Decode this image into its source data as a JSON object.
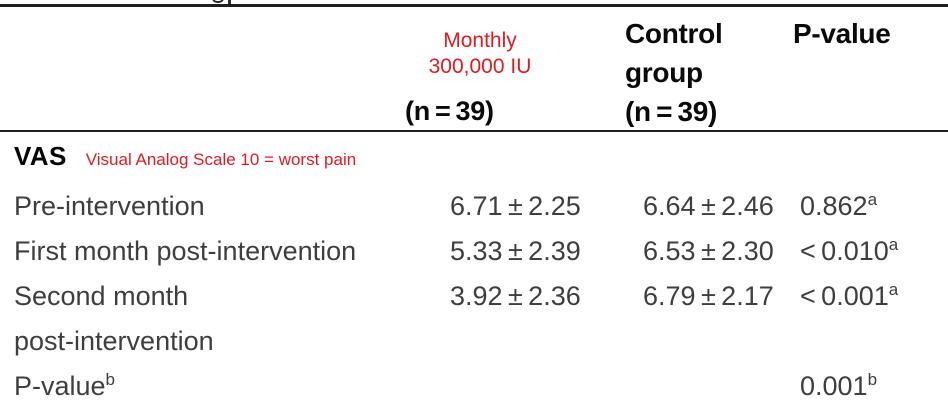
{
  "colors": {
    "annotation_red": "#dd1c22",
    "header_text": "#0a0a0a",
    "body_text": "#3e3e3e",
    "rule": "#1e1e1e"
  },
  "header": {
    "col_treatment": {
      "line1": "Monthly",
      "line2": "300,000 IU",
      "n": "(n = 39)"
    },
    "col_control": {
      "line1": "Control",
      "line2": "group",
      "n": "(n = 39)"
    },
    "col_pvalue": {
      "label": "P-value"
    }
  },
  "section": {
    "label": "VAS",
    "note": "Visual Analog Scale 10 = worst pain"
  },
  "rows": [
    {
      "label": "Pre-intervention",
      "label2": "",
      "label_sup": "",
      "treatment": "6.71 ± 2.25",
      "control": "6.64 ± 2.46",
      "p": "0.862",
      "p_sup": "a"
    },
    {
      "label": "First month post-intervention",
      "label2": "",
      "label_sup": "",
      "treatment": "5.33 ± 2.39",
      "control": "6.53 ± 2.30",
      "p": "< 0.010",
      "p_sup": "a"
    },
    {
      "label": "Second month",
      "label2": "post-intervention",
      "label_sup": "",
      "treatment": "3.92 ± 2.36",
      "control": "6.79 ± 2.17",
      "p": "< 0.001",
      "p_sup": "a"
    },
    {
      "label": "P-value",
      "label2": "",
      "label_sup": "b",
      "treatment": "",
      "control": "",
      "p": "0.001",
      "p_sup": "b"
    }
  ],
  "chart_data": {
    "type": "table",
    "title": "VAS (Visual Analog Scale, 10 = worst pain)",
    "columns": [
      "",
      "Monthly 300,000 IU (n = 39)",
      "Control group (n = 39)",
      "P-value"
    ],
    "rows": [
      [
        "Pre-intervention",
        "6.71 ± 2.25",
        "6.64 ± 2.46",
        "0.862 a"
      ],
      [
        "First month post-intervention",
        "5.33 ± 2.39",
        "6.53 ± 2.30",
        "< 0.010 a"
      ],
      [
        "Second month post-intervention",
        "3.92 ± 2.36",
        "6.79 ± 2.17",
        "< 0.001 a"
      ],
      [
        "P-value b",
        "",
        "",
        "0.001 b"
      ]
    ]
  }
}
